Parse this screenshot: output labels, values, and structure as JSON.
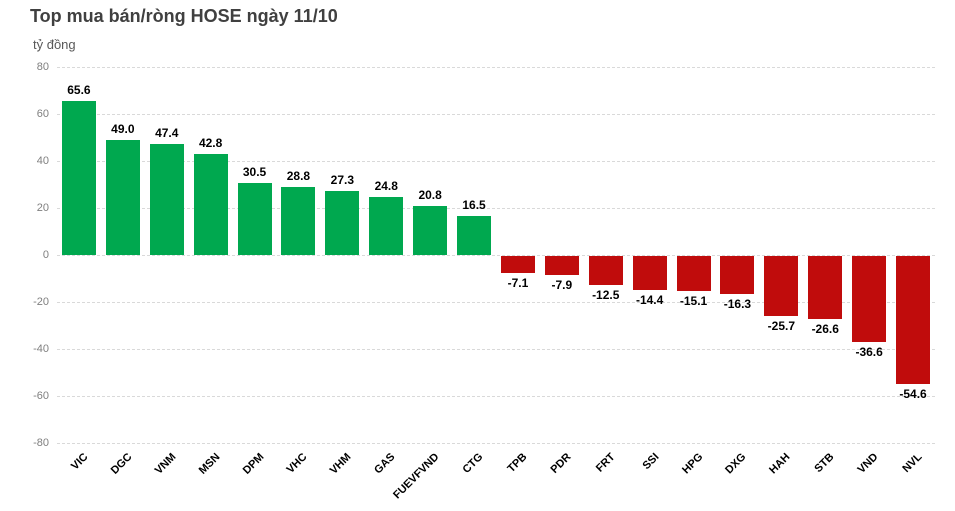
{
  "chart_data": {
    "type": "bar",
    "title": "Top mua bán/ròng HOSE ngày 11/10",
    "unit_label": "tỷ đồng",
    "categories": [
      "VIC",
      "DGC",
      "VNM",
      "MSN",
      "DPM",
      "VHC",
      "VHM",
      "GAS",
      "FUEVFVND",
      "CTG",
      "TPB",
      "PDR",
      "FRT",
      "SSI",
      "HPG",
      "DXG",
      "HAH",
      "STB",
      "VND",
      "NVL"
    ],
    "values": [
      65.6,
      49.0,
      47.4,
      42.8,
      30.5,
      28.8,
      27.3,
      24.8,
      20.8,
      16.5,
      -7.1,
      -7.9,
      -12.5,
      -14.4,
      -15.1,
      -16.3,
      -25.7,
      -26.6,
      -36.6,
      -54.6
    ],
    "value_label_decimals": 1,
    "ylim": [
      -80,
      80
    ],
    "ytick_interval": 20,
    "grid": true,
    "legend": "none",
    "colors": {
      "positive": "#00A84F",
      "negative": "#C00C0C",
      "title": "#404040",
      "unit_text": "#595959",
      "axis_text": "#7F7F7F",
      "gridline": "#D9D9D9",
      "value_label": "#000000"
    }
  }
}
